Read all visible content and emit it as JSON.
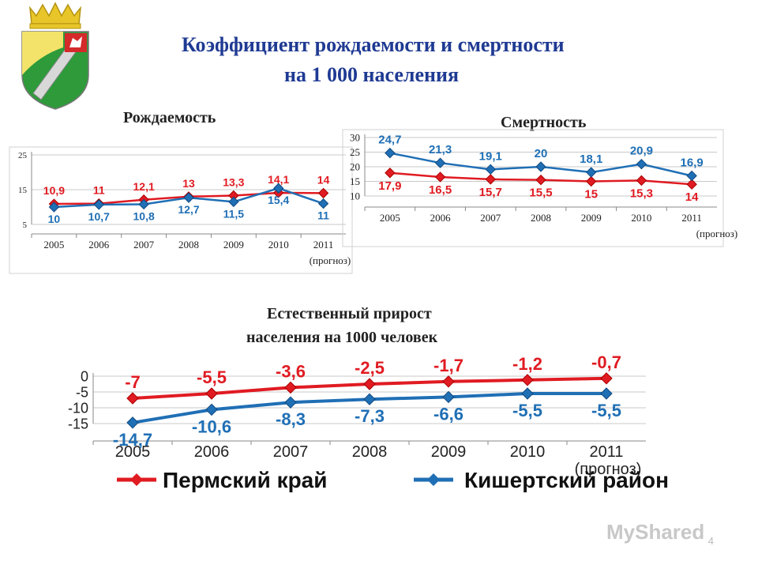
{
  "slide": {
    "title_line1": "Коэффициент рождаемости и смертности",
    "title_line2": "на 1 000 населения",
    "page_number": "4",
    "watermark": "MyShared"
  },
  "colors": {
    "perm": "#e01b22",
    "kish": "#1f6fb5",
    "title": "#1f3a93"
  },
  "chart_data": [
    {
      "id": "birth",
      "type": "line",
      "title": "Рождаемость",
      "categories": [
        "2005",
        "2006",
        "2007",
        "2008",
        "2009",
        "2010",
        "2011"
      ],
      "category_note": "(прогноз)",
      "yticks": [
        "5",
        "15",
        "25"
      ],
      "ylim": [
        5,
        25
      ],
      "series": [
        {
          "name": "Пермский край",
          "values": [
            10.9,
            11,
            12.1,
            13,
            13.3,
            14.1,
            14
          ],
          "labels": [
            "10,9",
            "11",
            "12,1",
            "13",
            "13,3",
            "14,1",
            "14"
          ]
        },
        {
          "name": "Кишертский район",
          "values": [
            10,
            10.7,
            10.8,
            12.7,
            11.5,
            15.4,
            11
          ],
          "labels": [
            "10",
            "10,7",
            "10,8",
            "12,7",
            "11,5",
            "15,4",
            "11"
          ]
        }
      ]
    },
    {
      "id": "death",
      "type": "line",
      "title": "Смертность",
      "categories": [
        "2005",
        "2006",
        "2007",
        "2008",
        "2009",
        "2010",
        "2011"
      ],
      "category_note": "(прогноз)",
      "yticks": [
        "10",
        "15",
        "20",
        "25",
        "30"
      ],
      "ylim": [
        10,
        30
      ],
      "series": [
        {
          "name": "Пермский край",
          "values": [
            17.9,
            16.5,
            15.7,
            15.5,
            15,
            15.3,
            14
          ],
          "labels": [
            "17,9",
            "16,5",
            "15,7",
            "15,5",
            "15",
            "15,3",
            "14"
          ]
        },
        {
          "name": "Кишертский район",
          "values": [
            24.7,
            21.3,
            19.1,
            20,
            18.1,
            20.9,
            16.9
          ],
          "labels": [
            "24,7",
            "21,3",
            "19,1",
            "20",
            "18,1",
            "20,9",
            "16,9"
          ]
        }
      ]
    },
    {
      "id": "growth",
      "type": "line",
      "title_line1": "Естественный прирост",
      "title_line2": "населения на 1000 человек",
      "categories": [
        "2005",
        "2006",
        "2007",
        "2008",
        "2009",
        "2010",
        "2011"
      ],
      "category_note": "(прогноз)",
      "yticks": [
        "0",
        "-5",
        "-10",
        "-15"
      ],
      "ylim": [
        -15,
        0
      ],
      "series": [
        {
          "name": "Пермский край",
          "values": [
            -7,
            -5.5,
            -3.6,
            -2.5,
            -1.7,
            -1.2,
            -0.7
          ],
          "labels": [
            "-7",
            "-5,5",
            "-3,6",
            "-2,5",
            "-1,7",
            "-1,2",
            "-0,7"
          ]
        },
        {
          "name": "Кишертский район",
          "values": [
            -14.7,
            -10.6,
            -8.3,
            -7.3,
            -6.6,
            -5.5,
            -5.5
          ],
          "labels": [
            "-14,7",
            "-10,6",
            "-8,3",
            "-7,3",
            "-6,6",
            "-5,5",
            "-5,5"
          ]
        }
      ],
      "legend": [
        "Пермский край",
        "Кишертский район"
      ]
    }
  ]
}
